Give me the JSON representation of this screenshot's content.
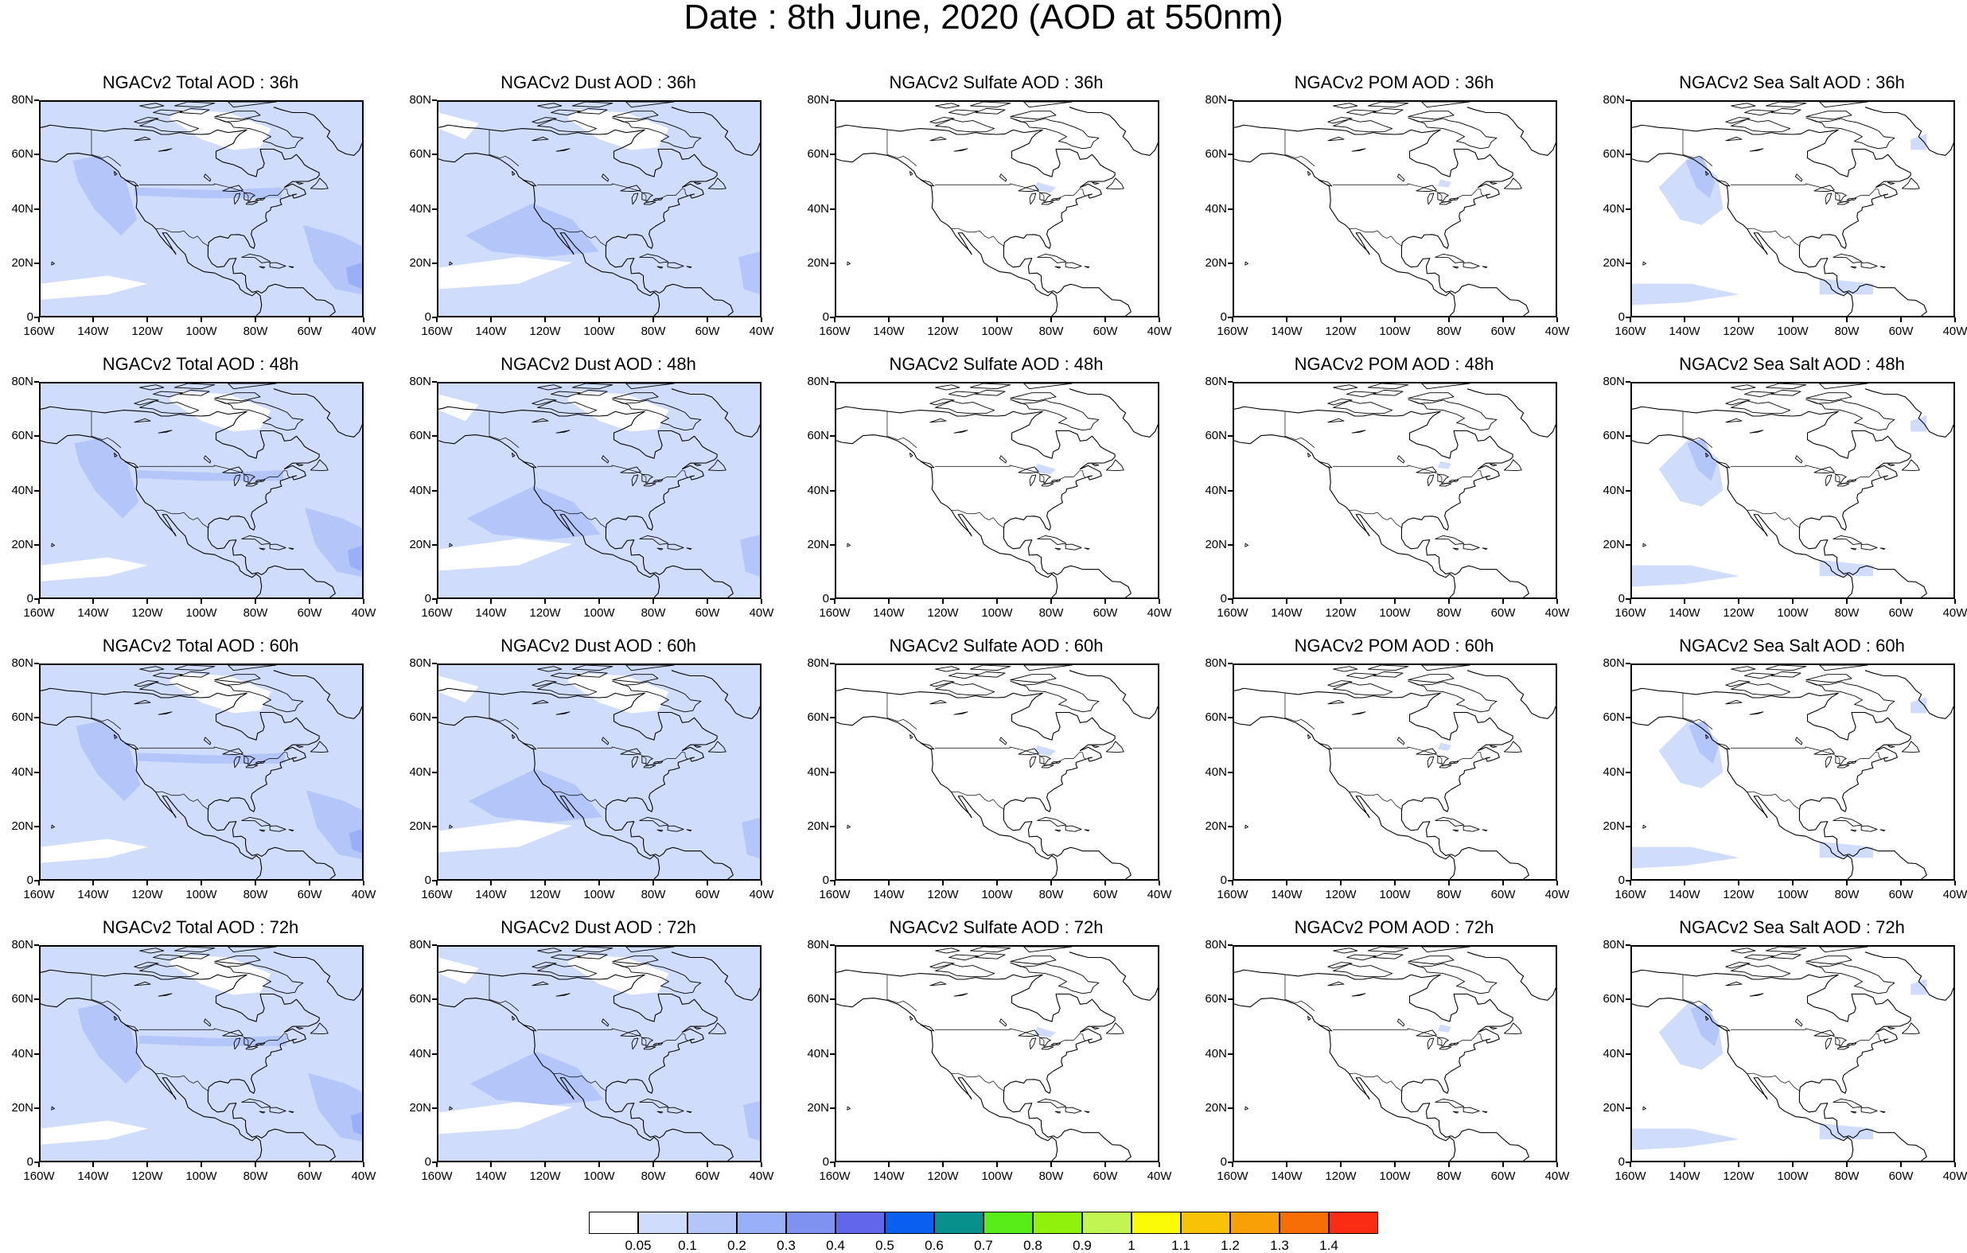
{
  "title": "Date : 8th June, 2020 (AOD at 550nm)",
  "axes": {
    "lat_labels": [
      "80N",
      "60N",
      "40N",
      "20N",
      "0"
    ],
    "lon_labels": [
      "160W",
      "140W",
      "120W",
      "100W",
      "80W",
      "60W",
      "40W"
    ]
  },
  "panels": [
    {
      "title": "NGACv2 Total AOD : 36h",
      "species": "total",
      "lead": "36h"
    },
    {
      "title": "NGACv2 Dust AOD : 36h",
      "species": "dust",
      "lead": "36h"
    },
    {
      "title": "NGACv2 Sulfate AOD : 36h",
      "species": "sulfate",
      "lead": "36h"
    },
    {
      "title": "NGACv2 POM AOD : 36h",
      "species": "pom",
      "lead": "36h"
    },
    {
      "title": "NGACv2 Sea Salt AOD : 36h",
      "species": "seasalt",
      "lead": "36h"
    },
    {
      "title": "NGACv2 Total AOD : 48h",
      "species": "total",
      "lead": "48h"
    },
    {
      "title": "NGACv2 Dust AOD : 48h",
      "species": "dust",
      "lead": "48h"
    },
    {
      "title": "NGACv2 Sulfate AOD : 48h",
      "species": "sulfate",
      "lead": "48h"
    },
    {
      "title": "NGACv2 POM AOD : 48h",
      "species": "pom",
      "lead": "48h"
    },
    {
      "title": "NGACv2 Sea Salt AOD : 48h",
      "species": "seasalt",
      "lead": "48h"
    },
    {
      "title": "NGACv2 Total AOD : 60h",
      "species": "total",
      "lead": "60h"
    },
    {
      "title": "NGACv2 Dust AOD : 60h",
      "species": "dust",
      "lead": "60h"
    },
    {
      "title": "NGACv2 Sulfate AOD : 60h",
      "species": "sulfate",
      "lead": "60h"
    },
    {
      "title": "NGACv2 POM AOD : 60h",
      "species": "pom",
      "lead": "60h"
    },
    {
      "title": "NGACv2 Sea Salt AOD : 60h",
      "species": "seasalt",
      "lead": "60h"
    },
    {
      "title": "NGACv2 Total AOD : 72h",
      "species": "total",
      "lead": "72h"
    },
    {
      "title": "NGACv2 Dust AOD : 72h",
      "species": "dust",
      "lead": "72h"
    },
    {
      "title": "NGACv2 Sulfate AOD : 72h",
      "species": "sulfate",
      "lead": "72h"
    },
    {
      "title": "NGACv2 POM AOD : 72h",
      "species": "pom",
      "lead": "72h"
    },
    {
      "title": "NGACv2 Sea Salt  AOD : 72h",
      "species": "seasalt",
      "lead": "72h"
    }
  ],
  "colorbar": {
    "colors": [
      "#ffffff",
      "#d0dcfb",
      "#b3c5f9",
      "#98b0f7",
      "#7f92f2",
      "#6266ea",
      "#0a5ff0",
      "#08918c",
      "#58ec18",
      "#90f20c",
      "#c2f552",
      "#fbfb07",
      "#f8c206",
      "#f8a006",
      "#f76d06",
      "#fb2c14"
    ],
    "labels": [
      "0.05",
      "0.1",
      "0.2",
      "0.3",
      "0.4",
      "0.5",
      "0.6",
      "0.7",
      "0.8",
      "0.9",
      "1",
      "1.1",
      "1.2",
      "1.3",
      "1.4"
    ]
  }
}
